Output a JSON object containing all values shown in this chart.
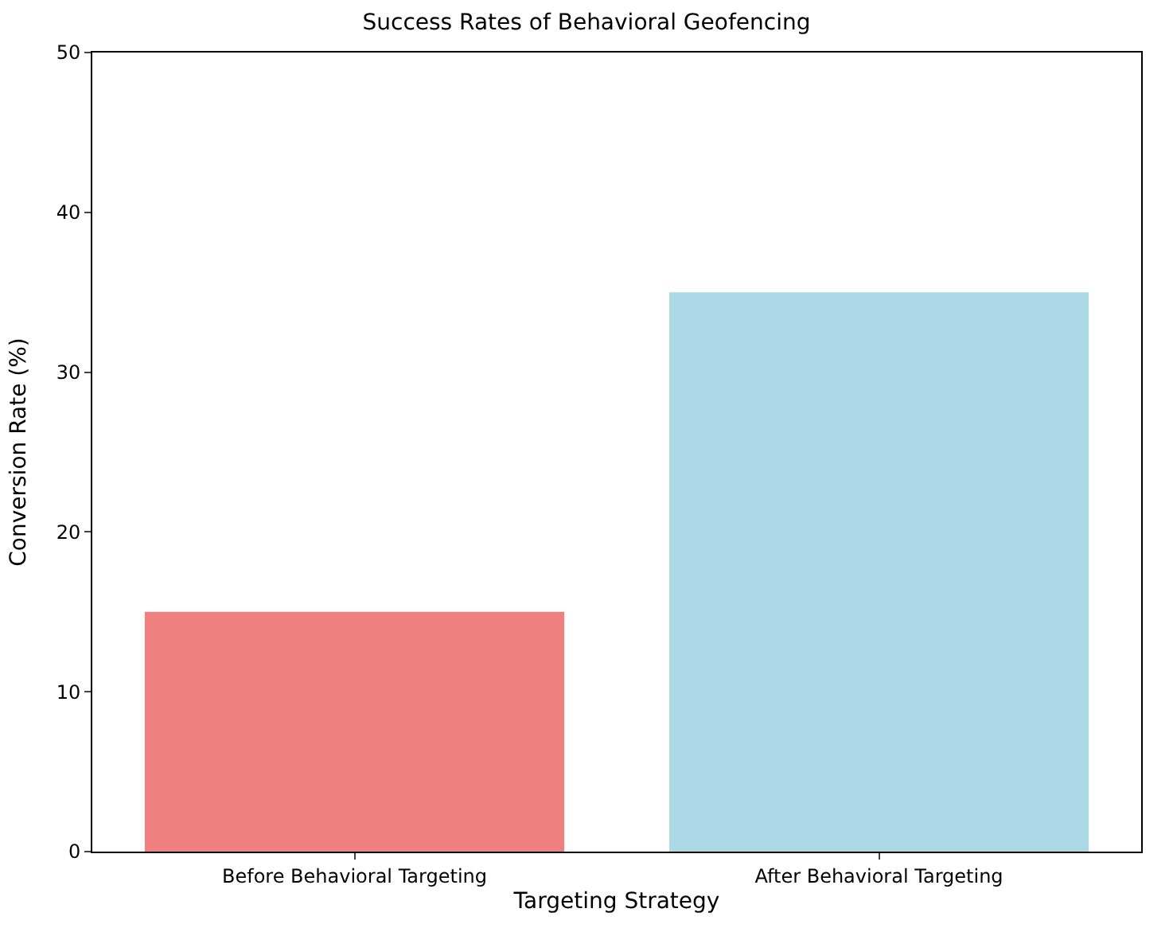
{
  "chart_data": {
    "type": "bar",
    "title": "Success Rates of Behavioral Geofencing",
    "xlabel": "Targeting Strategy",
    "ylabel": "Conversion Rate (%)",
    "categories": [
      "Before Behavioral Targeting",
      "After Behavioral Targeting"
    ],
    "values": [
      15,
      35
    ],
    "colors": [
      "#f08080",
      "#add8e6"
    ],
    "ylim": [
      0,
      50
    ],
    "yticks": [
      0,
      10,
      20,
      30,
      40,
      50
    ],
    "grid": false
  }
}
